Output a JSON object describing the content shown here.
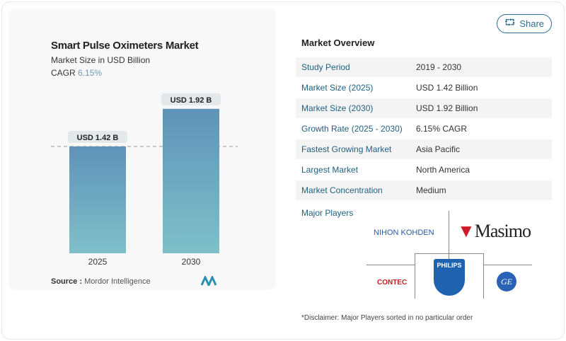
{
  "chart_data": {
    "type": "bar",
    "title": "Smart Pulse Oximeters Market",
    "subtitle": "Market Size in USD Billion",
    "cagr_label": "CAGR",
    "cagr_value": "6.15%",
    "categories": [
      "2025",
      "2030"
    ],
    "values": [
      1.42,
      1.92
    ],
    "data_labels": [
      "USD 1.42 B",
      "USD 1.92 B"
    ],
    "bar_color": "#5f93b8",
    "ylim": [
      0,
      2.2
    ],
    "grid": false
  },
  "source": {
    "label": "Source :",
    "value": "Mordor Intelligence"
  },
  "share_label": "Share",
  "overview": {
    "title": "Market Overview",
    "rows": [
      {
        "k": "Study Period",
        "v": "2019 - 2030"
      },
      {
        "k": "Market Size (2025)",
        "v": "USD 1.42 Billion"
      },
      {
        "k": "Market Size (2030)",
        "v": "USD 1.92 Billion"
      },
      {
        "k": "Growth Rate (2025 - 2030)",
        "v": "6.15% CAGR"
      },
      {
        "k": "Fastest Growing Market",
        "v": "Asia Pacific"
      },
      {
        "k": "Largest Market",
        "v": "North America"
      },
      {
        "k": "Market Concentration",
        "v": "Medium"
      }
    ],
    "major_players_label": "Major Players",
    "players": [
      "NIHON KOHDEN",
      "MASIMO",
      "PHILIPS",
      "CONTEC",
      "GE"
    ],
    "disclaimer": "*Disclaimer: Major Players sorted in no particular order"
  }
}
